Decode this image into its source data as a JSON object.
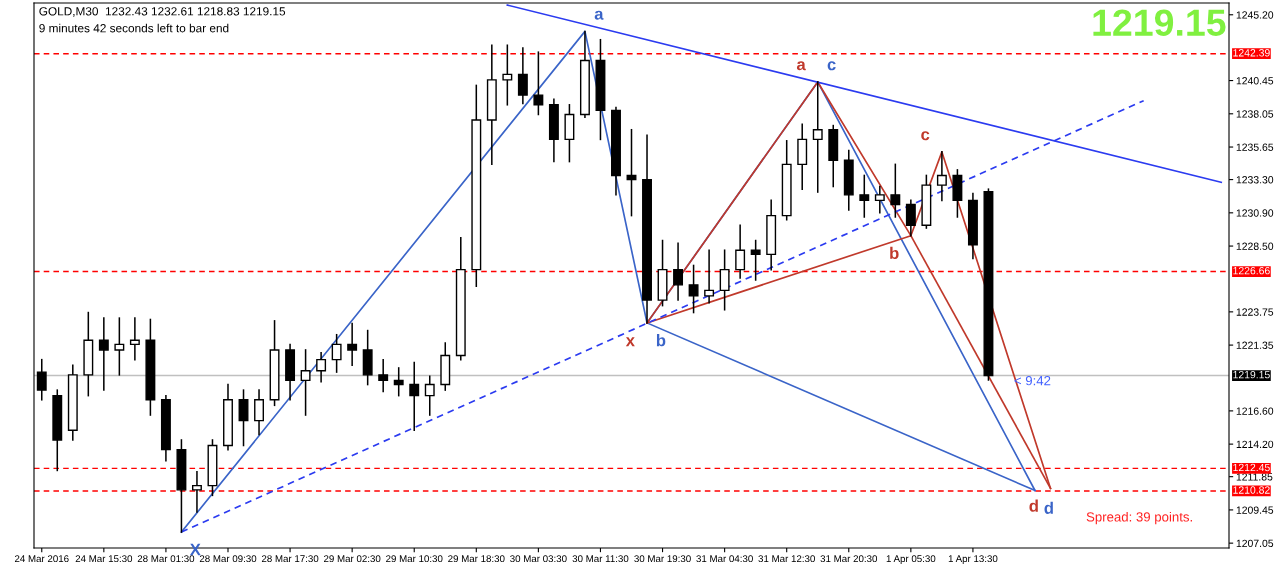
{
  "chart_data": {
    "type": "candlestick",
    "title": "GOLD,M30  1232.43 1232.61 1218.83 1219.15",
    "subtitle": "9 minutes 42 seconds left to bar end",
    "annotations": [
      "1219.15",
      "Spread: 39 points.",
      "< 9:42"
    ],
    "color": "#000000",
    "categories": [
      "24 Mar 2016",
      null,
      null,
      null,
      "24 Mar 15:30",
      null,
      null,
      null,
      "28 Mar 01:30",
      null,
      null,
      null,
      "28 Mar 09:30",
      null,
      null,
      null,
      "28 Mar 17:30",
      null,
      null,
      null,
      "29 Mar 02:30",
      null,
      null,
      null,
      "29 Mar 10:30",
      null,
      null,
      null,
      "29 Mar 18:30",
      null,
      null,
      null,
      "30 Mar 03:30",
      null,
      null,
      null,
      "30 Mar 11:30",
      null,
      null,
      null,
      "30 Mar 19:30",
      null,
      null,
      null,
      "31 Mar 04:30",
      null,
      null,
      null,
      "31 Mar 12:30",
      null,
      null,
      null,
      "31 Mar 20:30",
      null,
      null,
      null,
      "1 Apr 05:30",
      null,
      null,
      null,
      "1 Apr 13:30",
      null,
      null,
      null,
      null,
      null,
      null,
      null,
      null,
      null,
      null,
      null,
      null,
      null,
      null,
      null,
      null
    ],
    "ohlc": [
      [
        1219.4,
        1220.3,
        1217.4,
        1218.1
      ],
      [
        1217.7,
        1218.1,
        1212.3,
        1214.5
      ],
      [
        1215.2,
        1219.9,
        1214.5,
        1219.2
      ],
      [
        1219.2,
        1223.7,
        1217.7,
        1221.7
      ],
      [
        1221.7,
        1223.3,
        1218.1,
        1221.0
      ],
      [
        1221.0,
        1223.3,
        1219.2,
        1221.4
      ],
      [
        1221.4,
        1223.3,
        1220.3,
        1221.7
      ],
      [
        1221.7,
        1223.2,
        1216.3,
        1217.4
      ],
      [
        1217.4,
        1217.7,
        1213.0,
        1213.8
      ],
      [
        1213.8,
        1214.5,
        1207.85,
        1210.9
      ],
      [
        1210.9,
        1212.2,
        1209.3,
        1211.2
      ],
      [
        1211.2,
        1214.5,
        1210.5,
        1214.1
      ],
      [
        1214.1,
        1218.5,
        1213.8,
        1217.4
      ],
      [
        1217.4,
        1218.1,
        1214.1,
        1215.9
      ],
      [
        1215.9,
        1218.1,
        1214.9,
        1217.4
      ],
      [
        1217.4,
        1223.1,
        1217.0,
        1221.0
      ],
      [
        1221.0,
        1221.4,
        1217.4,
        1218.8
      ],
      [
        1218.8,
        1221.0,
        1216.3,
        1219.5
      ],
      [
        1219.5,
        1220.8,
        1218.7,
        1220.3
      ],
      [
        1220.3,
        1222.1,
        1219.4,
        1221.4
      ],
      [
        1221.4,
        1222.9,
        1219.9,
        1221.0
      ],
      [
        1221.0,
        1222.4,
        1218.5,
        1219.2
      ],
      [
        1219.2,
        1220.3,
        1218.0,
        1218.8
      ],
      [
        1218.8,
        1219.7,
        1217.7,
        1218.5
      ],
      [
        1218.5,
        1220.1,
        1215.2,
        1217.7
      ],
      [
        1217.7,
        1219.1,
        1216.3,
        1218.5
      ],
      [
        1218.5,
        1221.5,
        1218.1,
        1220.6
      ],
      [
        1220.6,
        1229.1,
        1220.3,
        1226.8
      ],
      [
        1226.8,
        1240.1,
        1225.6,
        1237.6
      ],
      [
        1237.6,
        1243.0,
        1234.4,
        1240.5
      ],
      [
        1240.5,
        1243.0,
        1238.7,
        1240.9
      ],
      [
        1240.9,
        1242.8,
        1238.8,
        1239.4
      ],
      [
        1239.4,
        1242.5,
        1238.0,
        1238.7
      ],
      [
        1238.7,
        1239.1,
        1234.6,
        1236.2
      ],
      [
        1236.2,
        1238.7,
        1234.6,
        1238.0
      ],
      [
        1238.0,
        1244.0,
        1237.8,
        1241.9
      ],
      [
        1241.9,
        1243.4,
        1236.2,
        1238.3
      ],
      [
        1238.3,
        1238.5,
        1232.2,
        1233.6
      ],
      [
        1233.6,
        1236.9,
        1230.7,
        1233.3
      ],
      [
        1233.3,
        1236.5,
        1222.95,
        1224.6
      ],
      [
        1224.6,
        1228.9,
        1224.2,
        1226.8
      ],
      [
        1226.8,
        1228.7,
        1224.6,
        1225.7
      ],
      [
        1225.7,
        1227.1,
        1223.7,
        1224.9
      ],
      [
        1224.9,
        1228.2,
        1224.4,
        1225.3
      ],
      [
        1225.3,
        1228.2,
        1223.9,
        1226.8
      ],
      [
        1226.8,
        1230.0,
        1226.2,
        1228.2
      ],
      [
        1228.2,
        1228.9,
        1226.05,
        1227.9
      ],
      [
        1227.9,
        1231.8,
        1226.8,
        1230.7
      ],
      [
        1230.7,
        1236.1,
        1230.4,
        1234.4
      ],
      [
        1234.4,
        1237.3,
        1232.6,
        1236.2
      ],
      [
        1236.2,
        1240.35,
        1232.4,
        1236.9
      ],
      [
        1236.9,
        1237.2,
        1232.8,
        1234.7
      ],
      [
        1234.7,
        1235.4,
        1231.1,
        1232.2
      ],
      [
        1232.2,
        1233.6,
        1230.6,
        1231.8
      ],
      [
        1231.8,
        1232.8,
        1230.9,
        1232.2
      ],
      [
        1232.2,
        1234.4,
        1230.6,
        1231.5
      ],
      [
        1231.5,
        1231.8,
        1229.25,
        1230.0
      ],
      [
        1230.0,
        1233.6,
        1229.8,
        1232.9
      ],
      [
        1232.9,
        1235.3,
        1231.8,
        1233.6
      ],
      [
        1233.6,
        1234.0,
        1230.6,
        1231.8
      ],
      [
        1231.8,
        1232.3,
        1227.6,
        1228.6
      ],
      [
        1232.43,
        1232.61,
        1218.83,
        1219.15
      ],
      null,
      null,
      null,
      null,
      null,
      null,
      null,
      null,
      null,
      null,
      null,
      null,
      null,
      null,
      null
    ],
    "series": [
      {
        "type": "line",
        "color": "#3a64c8",
        "values": [
          null,
          null,
          null,
          null,
          null,
          null,
          null,
          null,
          null,
          1207.85,
          null,
          null,
          null,
          null,
          null,
          null,
          null,
          null,
          null,
          null,
          null,
          null,
          null,
          null,
          null,
          null,
          null,
          null,
          null,
          null,
          null,
          null,
          null,
          null,
          null,
          1244.0,
          null,
          null,
          null,
          1222.95,
          null,
          null,
          null,
          null,
          null,
          null,
          null,
          null,
          null,
          null,
          1240.35,
          null,
          null,
          null,
          null,
          null,
          null,
          null,
          null,
          null,
          null,
          null,
          null,
          null,
          1210.85,
          null,
          null,
          null,
          null,
          null,
          null,
          null,
          null,
          null,
          null,
          null,
          null
        ],
        "value_labels": [
          null,
          null,
          null,
          null,
          null,
          null,
          null,
          null,
          null,
          "X",
          null,
          null,
          null,
          null,
          null,
          null,
          null,
          null,
          null,
          null,
          null,
          null,
          null,
          null,
          null,
          null,
          null,
          null,
          null,
          null,
          null,
          null,
          null,
          null,
          null,
          "a",
          null,
          null,
          null,
          "b",
          null,
          null,
          null,
          null,
          null,
          null,
          null,
          null,
          null,
          null,
          "c",
          null,
          null,
          null,
          null,
          null,
          null,
          null,
          null,
          null,
          null,
          null,
          null,
          null,
          "d",
          null,
          null,
          null,
          null,
          null,
          null,
          null,
          null,
          null,
          null,
          null,
          null
        ]
      },
      {
        "type": "line",
        "color": "#3a64c8",
        "values": [
          null,
          null,
          null,
          null,
          null,
          null,
          null,
          null,
          null,
          null,
          null,
          null,
          null,
          null,
          null,
          null,
          null,
          null,
          null,
          null,
          null,
          null,
          null,
          null,
          null,
          null,
          null,
          null,
          null,
          null,
          null,
          null,
          null,
          null,
          null,
          null,
          null,
          null,
          null,
          1222.95,
          null,
          null,
          null,
          null,
          null,
          null,
          null,
          null,
          null,
          null,
          null,
          null,
          null,
          null,
          null,
          null,
          null,
          null,
          null,
          null,
          null,
          null,
          null,
          null,
          1210.85,
          null,
          null,
          null,
          null,
          null,
          null,
          null,
          null,
          null,
          null,
          null,
          null
        ]
      },
      {
        "type": "line",
        "color": "#c0392b",
        "values": [
          null,
          null,
          null,
          null,
          null,
          null,
          null,
          null,
          null,
          null,
          null,
          null,
          null,
          null,
          null,
          null,
          null,
          null,
          null,
          null,
          null,
          null,
          null,
          null,
          null,
          null,
          null,
          null,
          null,
          null,
          null,
          null,
          null,
          null,
          null,
          null,
          null,
          null,
          null,
          1222.95,
          null,
          null,
          null,
          null,
          null,
          null,
          null,
          null,
          null,
          null,
          1240.35,
          null,
          null,
          null,
          null,
          null,
          1229.25,
          null,
          1235.3,
          null,
          null,
          null,
          null,
          null,
          null,
          1211.0,
          null,
          null,
          null,
          null,
          null,
          null,
          null,
          null,
          null,
          null,
          null
        ],
        "value_labels": [
          null,
          null,
          null,
          null,
          null,
          null,
          null,
          null,
          null,
          null,
          null,
          null,
          null,
          null,
          null,
          null,
          null,
          null,
          null,
          null,
          null,
          null,
          null,
          null,
          null,
          null,
          null,
          null,
          null,
          null,
          null,
          null,
          null,
          null,
          null,
          null,
          null,
          null,
          null,
          "x",
          null,
          null,
          null,
          null,
          null,
          null,
          null,
          null,
          null,
          null,
          "a",
          null,
          null,
          null,
          null,
          null,
          "b",
          null,
          "c",
          null,
          null,
          null,
          null,
          null,
          null,
          "d",
          null,
          null,
          null,
          null,
          null,
          null,
          null,
          null,
          null,
          null,
          null
        ]
      },
      {
        "type": "line",
        "color": "#c0392b",
        "values": [
          null,
          null,
          null,
          null,
          null,
          null,
          null,
          null,
          null,
          null,
          null,
          null,
          null,
          null,
          null,
          null,
          null,
          null,
          null,
          null,
          null,
          null,
          null,
          null,
          null,
          null,
          null,
          null,
          null,
          null,
          null,
          null,
          null,
          null,
          null,
          null,
          null,
          null,
          null,
          1222.95,
          null,
          null,
          null,
          null,
          null,
          null,
          null,
          null,
          null,
          null,
          null,
          null,
          null,
          null,
          null,
          null,
          1229.25,
          null,
          null,
          null,
          null,
          null,
          null,
          null,
          null,
          null,
          null,
          null,
          null,
          null,
          null,
          null,
          null,
          null,
          null,
          null,
          null
        ]
      },
      {
        "type": "line",
        "color": "#c0392b",
        "values": [
          null,
          null,
          null,
          null,
          null,
          null,
          null,
          null,
          null,
          null,
          null,
          null,
          null,
          null,
          null,
          null,
          null,
          null,
          null,
          null,
          null,
          null,
          null,
          null,
          null,
          null,
          null,
          null,
          null,
          null,
          null,
          null,
          null,
          null,
          null,
          null,
          null,
          null,
          null,
          null,
          null,
          null,
          null,
          null,
          null,
          null,
          null,
          null,
          null,
          null,
          null,
          null,
          null,
          null,
          null,
          null,
          1229.25,
          null,
          null,
          null,
          null,
          null,
          null,
          null,
          null,
          1211.0,
          null,
          null,
          null,
          null,
          null,
          null,
          null,
          null,
          null,
          null,
          null
        ]
      },
      {
        "type": "line",
        "color": "#2b3bf0",
        "line_style": "dashed",
        "values": [
          null,
          null,
          null,
          null,
          null,
          null,
          null,
          null,
          null,
          1207.85,
          null,
          null,
          null,
          null,
          null,
          null,
          null,
          null,
          null,
          null,
          null,
          null,
          null,
          null,
          null,
          null,
          null,
          null,
          null,
          null,
          null,
          null,
          null,
          null,
          null,
          null,
          null,
          null,
          null,
          null,
          null,
          null,
          null,
          null,
          null,
          null,
          null,
          null,
          null,
          null,
          null,
          null,
          null,
          null,
          null,
          null,
          null,
          null,
          null,
          null,
          null,
          null,
          null,
          null,
          null,
          null,
          null,
          null,
          null,
          null,
          null,
          1239.0,
          null,
          null,
          null,
          null,
          null
        ]
      },
      {
        "type": "line",
        "color": "#2b3bf0",
        "values": [
          null,
          null,
          null,
          null,
          null,
          null,
          null,
          null,
          null,
          null,
          null,
          null,
          null,
          null,
          null,
          null,
          null,
          null,
          null,
          null,
          null,
          null,
          null,
          null,
          null,
          null,
          null,
          null,
          null,
          null,
          1245.9,
          null,
          null,
          null,
          null,
          null,
          null,
          null,
          null,
          null,
          null,
          null,
          null,
          null,
          null,
          null,
          null,
          null,
          null,
          null,
          null,
          null,
          null,
          null,
          null,
          null,
          null,
          null,
          null,
          null,
          null,
          null,
          null,
          null,
          null,
          null,
          null,
          null,
          null,
          null,
          null,
          null,
          null,
          null,
          null,
          null,
          1233.1
        ]
      }
    ],
    "ref_lines": [
      {
        "axis": "y",
        "value": 1242.39,
        "label": "1242.39",
        "color": "#ff0000",
        "line_style": "dashed"
      },
      {
        "axis": "y",
        "value": 1226.66,
        "label": "1226.66",
        "color": "#ff0000",
        "line_style": "dashed"
      },
      {
        "axis": "y",
        "value": 1212.45,
        "label": "1212.45",
        "color": "#ff0000",
        "line_style": "dashed"
      },
      {
        "axis": "y",
        "value": 1210.82,
        "label": "1210.82",
        "color": "#ff0000",
        "line_style": "dashed"
      },
      {
        "axis": "y",
        "value": 1219.15,
        "label": "1219.15",
        "color": "#c0c0c0",
        "line_style": "solid"
      }
    ],
    "ylim": [
      1206.7,
      1246.05
    ],
    "yticks": [
      {
        "value": 1245.2,
        "label": "1245.20"
      },
      {
        "value": 1240.45,
        "label": "1240.45"
      },
      {
        "value": 1238.05,
        "label": "1238.05"
      },
      {
        "value": 1235.65,
        "label": "1235.65"
      },
      {
        "value": 1233.3,
        "label": "1233.30"
      },
      {
        "value": 1230.9,
        "label": "1230.90"
      },
      {
        "value": 1228.5,
        "label": "1228.50"
      },
      {
        "value": 1223.75,
        "label": "1223.75"
      },
      {
        "value": 1221.35,
        "label": "1221.35"
      },
      {
        "value": 1216.6,
        "label": "1216.60"
      },
      {
        "value": 1214.2,
        "label": "1214.20"
      },
      {
        "value": 1211.85,
        "label": "1211.85"
      },
      {
        "value": 1209.45,
        "label": "1209.45"
      },
      {
        "value": 1207.05,
        "label": "1207.05"
      }
    ],
    "grid": false,
    "legend": false
  }
}
